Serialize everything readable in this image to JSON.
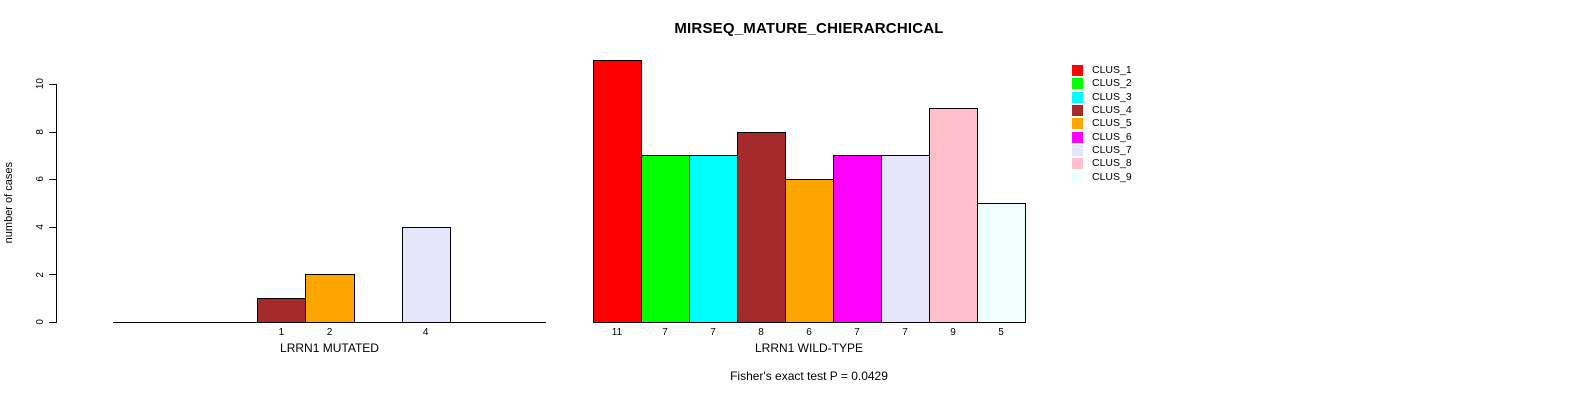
{
  "title": "MIRSEQ_MATURE_CHIERARCHICAL",
  "footer": "Fisher's exact test P = 0.0429",
  "y_axis": {
    "label": "number of cases",
    "ticks": [
      "0",
      "2",
      "4",
      "6",
      "8",
      "10"
    ]
  },
  "legend": {
    "items": [
      {
        "label": "CLUS_1",
        "color": "#FF0000"
      },
      {
        "label": "CLUS_2",
        "color": "#00FF00"
      },
      {
        "label": "CLUS_3",
        "color": "#00FFFF"
      },
      {
        "label": "CLUS_4",
        "color": "#A52A2A"
      },
      {
        "label": "CLUS_5",
        "color": "#FFA500"
      },
      {
        "label": "CLUS_6",
        "color": "#FF00FF"
      },
      {
        "label": "CLUS_7",
        "color": "#E6E6FA"
      },
      {
        "label": "CLUS_8",
        "color": "#FFC0CB"
      },
      {
        "label": "CLUS_9",
        "color": "#F0FFFF"
      }
    ]
  },
  "chart_data": {
    "type": "bar",
    "title": "MIRSEQ_MATURE_CHIERARCHICAL",
    "ylabel": "number of cases",
    "ylim": [
      0,
      10
    ],
    "yticks": [
      0,
      2,
      4,
      6,
      8,
      10
    ],
    "legend_position": "right",
    "annotation": "Fisher's exact test P = 0.0429",
    "categories": [
      "CLUS_1",
      "CLUS_2",
      "CLUS_3",
      "CLUS_4",
      "CLUS_5",
      "CLUS_6",
      "CLUS_7",
      "CLUS_8",
      "CLUS_9"
    ],
    "groups": [
      {
        "xlabel": "LRRN1 MUTATED",
        "values": [
          0,
          0,
          0,
          1,
          2,
          0,
          4,
          0,
          0
        ],
        "bar_labels": [
          "",
          "",
          "",
          "1",
          "2",
          "",
          "4",
          "",
          ""
        ]
      },
      {
        "xlabel": "LRRN1 WILD-TYPE",
        "values": [
          11,
          7,
          7,
          8,
          6,
          7,
          7,
          9,
          5
        ],
        "bar_labels": [
          "11",
          "7",
          "7",
          "8",
          "6",
          "7",
          "7",
          "9",
          "5"
        ]
      }
    ]
  }
}
